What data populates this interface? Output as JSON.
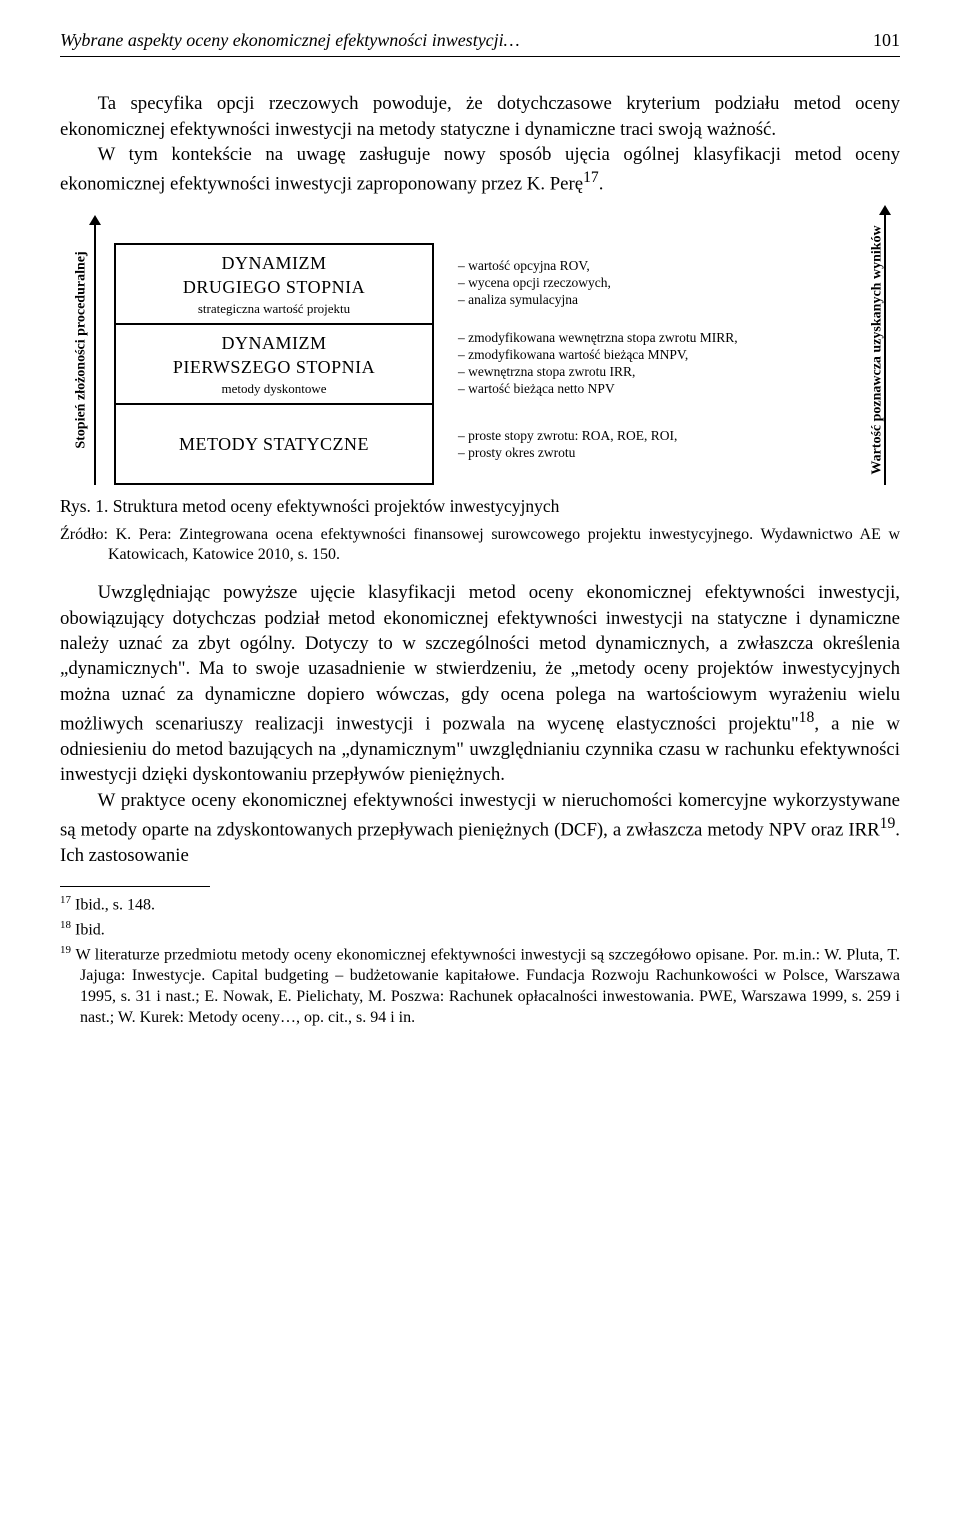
{
  "header": {
    "running_title": "Wybrane aspekty oceny ekonomicznej efektywności inwestycji…",
    "page_number": "101"
  },
  "para1": "Ta specyfika opcji rzeczowych powoduje, że dotychczasowe kryterium podziału metod oceny ekonomicznej efektywności inwestycji na metody statyczne i dynamiczne traci swoją ważność.",
  "para2_a": "W tym kontekście na uwagę zasługuje nowy sposób ujęcia ogólnej klasyfikacji metod oceny ekonomicznej efektywności inwestycji zaproponowany przez K. Perę",
  "para2_sup": "17",
  "para2_b": ".",
  "figure": {
    "left_axis_label": "Stopień złożoności proceduralnej",
    "right_axis_label": "Wartość poznawcza uzyskanych wyników",
    "boxes": [
      {
        "title": "DYNAMIZM\nDRUGIEGO STOPNIA",
        "subtitle": "strategiczna wartość projektu"
      },
      {
        "title": "DYNAMIZM\nPIERWSZEGO STOPNIA",
        "subtitle": "metody dyskontowe"
      },
      {
        "title": "METODY STATYCZNE",
        "subtitle": ""
      }
    ],
    "descriptions": [
      [
        "– wartość opcyjna ROV,",
        "– wycena opcji rzeczowych,",
        "– analiza symulacyjna"
      ],
      [
        "– zmodyfikowana wewnętrzna stopa zwrotu MIRR,",
        "– zmodyfikowana wartość bieżąca MNPV,",
        "– wewnętrzna stopa zwrotu IRR,",
        "– wartość bieżąca netto NPV"
      ],
      [
        "– proste stopy zwrotu: ROA, ROE, ROI,",
        "– prosty okres zwrotu"
      ]
    ]
  },
  "fig_caption": "Rys. 1. Struktura metod oceny efektywności projektów inwestycyjnych",
  "source": "Źródło: K. Pera: Zintegrowana ocena efektywności finansowej surowcowego projektu inwestycyjnego. Wydawnictwo AE w Katowicach, Katowice 2010, s. 150.",
  "para3_a": "Uwzględniając powyższe ujęcie klasyfikacji metod oceny ekonomicznej efektywności inwestycji, obowiązujący dotychczas podział metod ekonomicznej efektywności inwestycji na statyczne i dynamiczne należy uznać za zbyt ogólny. Dotyczy to w szczególności metod dynamicznych, a zwłaszcza określenia „dynamicznych\". Ma to swoje uzasadnienie w stwierdzeniu, że „metody oceny projektów inwestycyjnych można uznać za dynamiczne dopiero wówczas, gdy ocena polega na wartościowym wyrażeniu wielu możliwych scenariuszy realizacji inwestycji i pozwala na wycenę elastyczności projektu\"",
  "para3_sup": "18",
  "para3_b": ", a nie w odniesieniu do metod bazujących na „dynamicznym\" uwzględnianiu czynnika czasu w rachunku efektywności inwestycji dzięki dyskontowaniu przepływów pieniężnych.",
  "para4_a": "W praktyce oceny ekonomicznej efektywności inwestycji w nieruchomości komercyjne wykorzystywane są metody oparte na zdyskontowanych przepływach pieniężnych (DCF), a zwłaszcza metody NPV oraz IRR",
  "para4_sup": "19",
  "para4_b": ". Ich zastosowanie",
  "footnotes": {
    "f17": {
      "num": "17",
      "text": "Ibid., s. 148."
    },
    "f18": {
      "num": "18",
      "text": "Ibid."
    },
    "f19": {
      "num": "19",
      "text": "W literaturze przedmiotu metody oceny ekonomicznej efektywności inwestycji są szczegółowo opisane. Por. m.in.: W. Pluta, T. Jajuga: Inwestycje. Capital budgeting – budżetowanie kapitałowe. Fundacja Rozwoju Rachunkowości w Polsce, Warszawa 1995, s. 31 i nast.; E. Nowak, E. Pielichaty, M. Poszwa: Rachunek opłacalności inwestowania. PWE, Warszawa 1999, s. 259 i nast.; W. Kurek: Metody oceny…, op. cit., s. 94 i in."
    }
  }
}
